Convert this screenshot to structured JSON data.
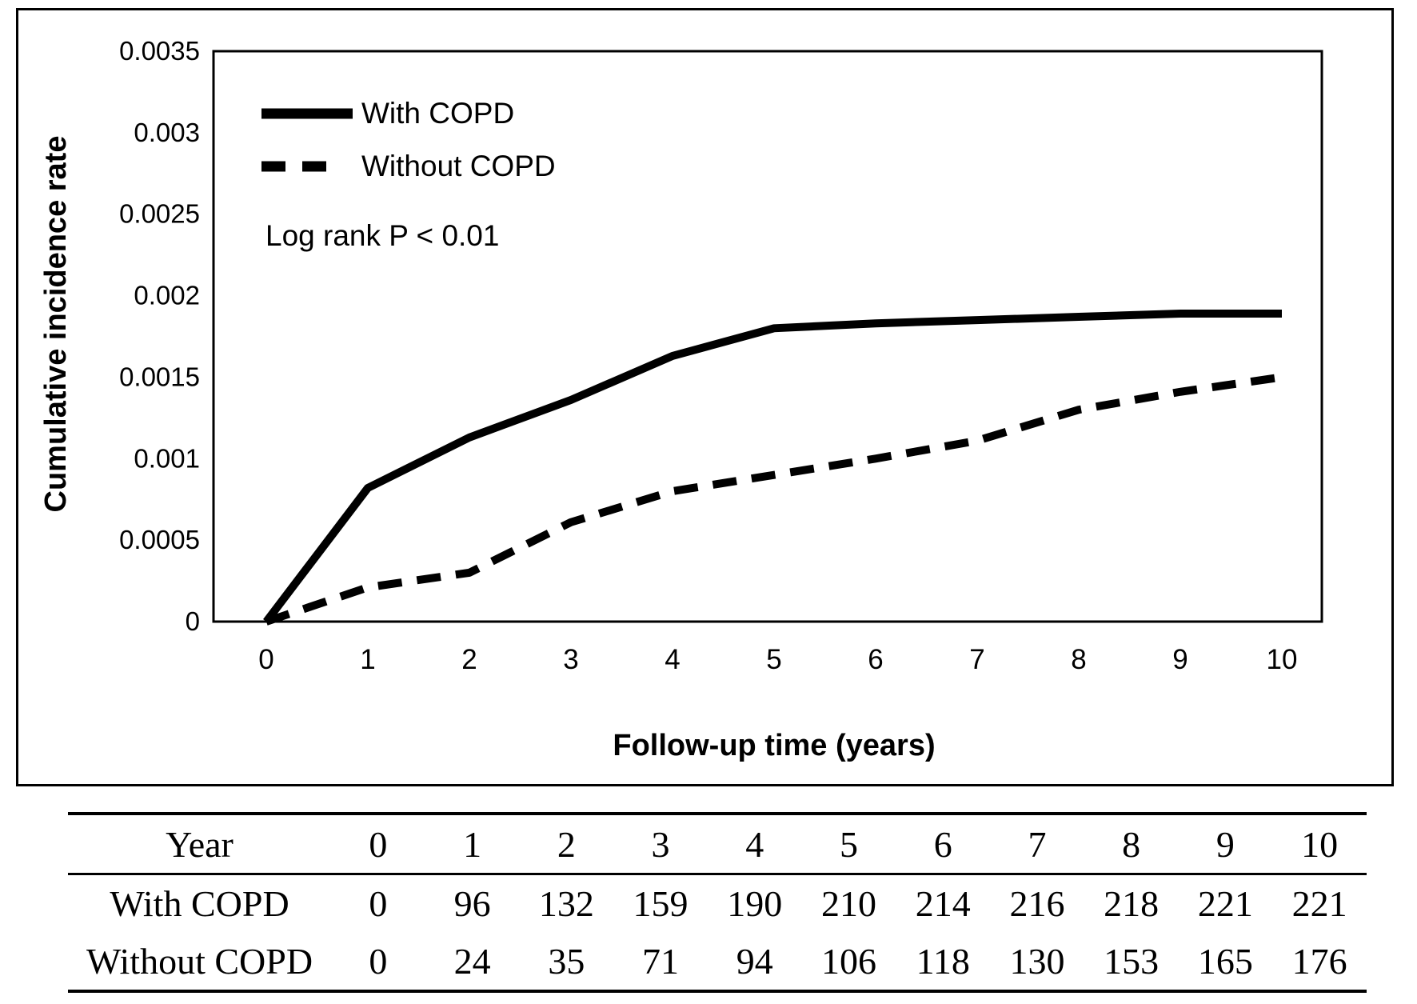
{
  "figure": {
    "y_axis": {
      "title": "Cumulative incidence rate",
      "ticks": [
        {
          "value": 0.0035,
          "label": "0.0035"
        },
        {
          "value": 0.003,
          "label": "0.003"
        },
        {
          "value": 0.0025,
          "label": "0.0025"
        },
        {
          "value": 0.002,
          "label": "0.002"
        },
        {
          "value": 0.0015,
          "label": "0.0015"
        },
        {
          "value": 0.001,
          "label": "0.001"
        },
        {
          "value": 0.0005,
          "label": "0.0005"
        },
        {
          "value": 0,
          "label": "0"
        }
      ]
    },
    "x_axis": {
      "title": "Follow-up time (years)",
      "ticks": [
        "0",
        "1",
        "2",
        "3",
        "4",
        "5",
        "6",
        "7",
        "8",
        "9",
        "10"
      ]
    },
    "legend": [
      {
        "label": "With COPD",
        "style": "solid"
      },
      {
        "label": "Without COPD",
        "style": "dashed"
      }
    ],
    "annotation": "Log rank P < 0.01"
  },
  "chart_data": {
    "type": "line",
    "title": "",
    "x": [
      0,
      1,
      2,
      3,
      4,
      5,
      6,
      7,
      8,
      9,
      10
    ],
    "xlabel": "Follow-up time (years)",
    "ylabel": "Cumulative incidence rate",
    "ylim": [
      0,
      0.0035
    ],
    "yticks": [
      0,
      0.0005,
      0.001,
      0.0015,
      0.002,
      0.0025,
      0.003,
      0.0035
    ],
    "grid": false,
    "legend_position": "upper-left-inside",
    "annotation": "Log rank P < 0.01",
    "series": [
      {
        "name": "With COPD",
        "line_style": "solid",
        "color": "#000000",
        "values": [
          0,
          0.00082,
          0.00113,
          0.00136,
          0.00163,
          0.0018,
          0.00183,
          0.00185,
          0.00187,
          0.00189,
          0.00189
        ]
      },
      {
        "name": "Without COPD",
        "line_style": "dashed",
        "color": "#000000",
        "values": [
          0,
          0.00021,
          0.0003,
          0.00061,
          0.0008,
          0.0009,
          0.001,
          0.00111,
          0.0013,
          0.00141,
          0.0015
        ]
      }
    ]
  },
  "table": {
    "header_label": "Year",
    "header_values": [
      "0",
      "1",
      "2",
      "3",
      "4",
      "5",
      "6",
      "7",
      "8",
      "9",
      "10"
    ],
    "rows": [
      {
        "label": "With COPD",
        "values": [
          "0",
          "96",
          "132",
          "159",
          "190",
          "210",
          "214",
          "216",
          "218",
          "221",
          "221"
        ]
      },
      {
        "label": "Without COPD",
        "values": [
          "0",
          "24",
          "35",
          "71",
          "94",
          "106",
          "118",
          "130",
          "153",
          "165",
          "176"
        ]
      }
    ]
  },
  "colors": {
    "foreground": "#000000",
    "background": "#ffffff"
  }
}
